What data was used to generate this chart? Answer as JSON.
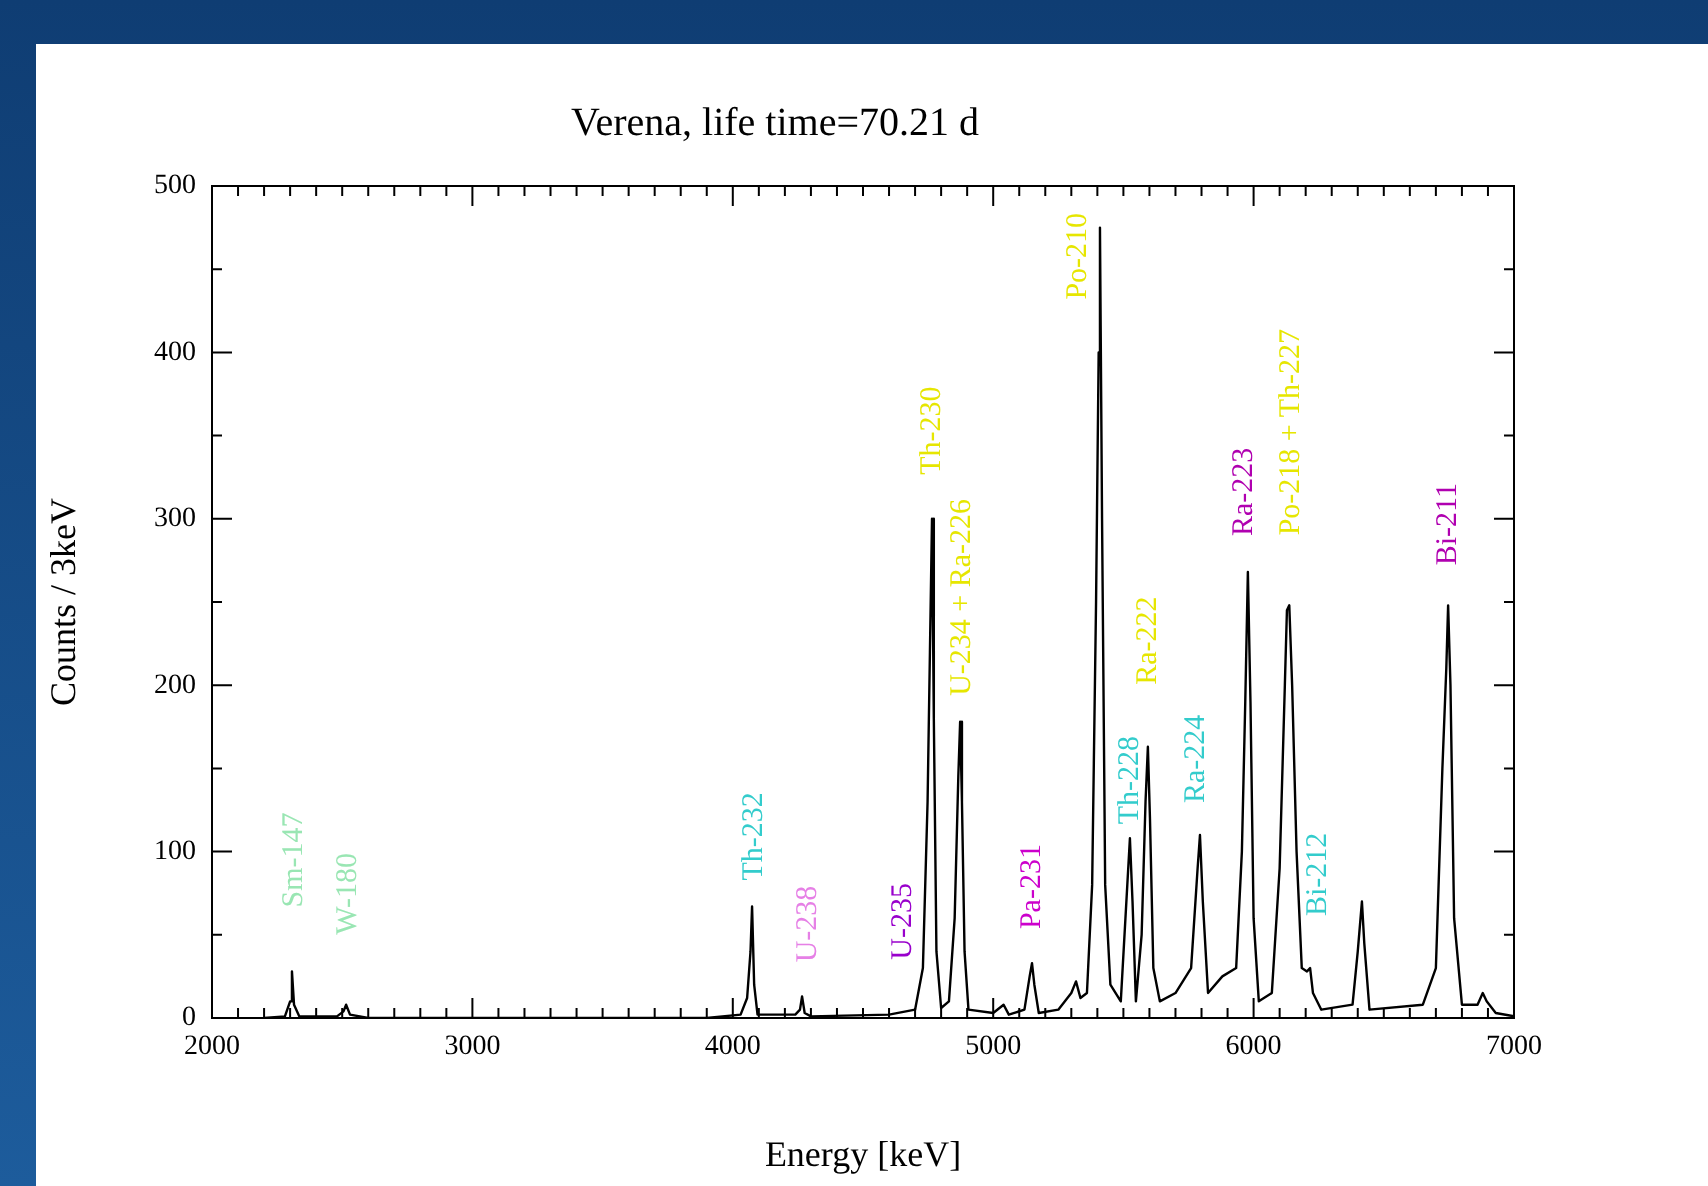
{
  "chart_data": {
    "type": "line",
    "title": "Verena, life time=70.21 d",
    "xlabel": "Energy [keV]",
    "ylabel": "Counts / 3keV",
    "xlim": [
      2000,
      7000
    ],
    "ylim": [
      0,
      500
    ],
    "xticks": [
      2000,
      {
        "value": 2100,
        "label": null
      },
      {
        "value": 2200,
        "label": null
      },
      {
        "value": 2300,
        "label": null
      },
      {
        "value": 2400,
        "label": null
      },
      {
        "value": 2500,
        "label": null
      },
      {
        "value": 2600,
        "label": null
      },
      {
        "value": 2700,
        "label": null
      },
      {
        "value": 2800,
        "label": null
      },
      {
        "value": 2900,
        "label": null
      },
      3000,
      {
        "value": 3100,
        "label": null
      },
      {
        "value": 3200,
        "label": null
      },
      {
        "value": 3300,
        "label": null
      },
      {
        "value": 3400,
        "label": null
      },
      {
        "value": 3500,
        "label": null
      },
      {
        "value": 3600,
        "label": null
      },
      {
        "value": 3700,
        "label": null
      },
      {
        "value": 3800,
        "label": null
      },
      {
        "value": 3900,
        "label": null
      },
      4000,
      {
        "value": 4100,
        "label": null
      },
      {
        "value": 4200,
        "label": null
      },
      {
        "value": 4300,
        "label": null
      },
      {
        "value": 4400,
        "label": null
      },
      {
        "value": 4500,
        "label": null
      },
      {
        "value": 4600,
        "label": null
      },
      {
        "value": 4700,
        "label": null
      },
      {
        "value": 4800,
        "label": null
      },
      {
        "value": 4900,
        "label": null
      },
      5000,
      {
        "value": 5100,
        "label": null
      },
      {
        "value": 5200,
        "label": null
      },
      {
        "value": 5300,
        "label": null
      },
      {
        "value": 5400,
        "label": null
      },
      {
        "value": 5500,
        "label": null
      },
      {
        "value": 5600,
        "label": null
      },
      {
        "value": 5700,
        "label": null
      },
      {
        "value": 5800,
        "label": null
      },
      {
        "value": 5900,
        "label": null
      },
      6000,
      {
        "value": 6100,
        "label": null
      },
      {
        "value": 6200,
        "label": null
      },
      {
        "value": 6300,
        "label": null
      },
      {
        "value": 6400,
        "label": null
      },
      {
        "value": 6500,
        "label": null
      },
      {
        "value": 6600,
        "label": null
      },
      {
        "value": 6700,
        "label": null
      },
      {
        "value": 6800,
        "label": null
      },
      {
        "value": 6900,
        "label": null
      },
      7000
    ],
    "yticks": [
      0,
      {
        "value": 50,
        "label": null
      },
      100,
      {
        "value": 150,
        "label": null
      },
      200,
      {
        "value": 250,
        "label": null
      },
      300,
      {
        "value": 350,
        "label": null
      },
      400,
      {
        "value": 450,
        "label": null
      },
      500
    ],
    "grid": false,
    "legend": false,
    "marker": "none",
    "line_style": "solid",
    "series": [
      {
        "color": "#000000",
        "x": [
          2200,
          2280,
          2300,
          2307,
          2315,
          2335,
          2480,
          2505,
          2515,
          2530,
          2600,
          3900,
          4030,
          4055,
          4068,
          4074,
          4082,
          4095,
          4240,
          4258,
          4266,
          4276,
          4300,
          4600,
          4700,
          4730,
          4748,
          4757,
          4765,
          4772,
          4782,
          4800,
          4830,
          4852,
          4866,
          4873,
          4880,
          4890,
          4905,
          5000,
          5040,
          5060,
          5120,
          5140,
          5149,
          5158,
          5175,
          5250,
          5300,
          5318,
          5335,
          5360,
          5380,
          5395,
          5405,
          5410,
          5418,
          5430,
          5450,
          5490,
          5515,
          5525,
          5535,
          5548,
          5570,
          5585,
          5594,
          5602,
          5615,
          5640,
          5700,
          5760,
          5785,
          5794,
          5805,
          5825,
          5880,
          5933,
          5955,
          5968,
          5978,
          5988,
          6000,
          6020,
          6070,
          6100,
          6120,
          6128,
          6137,
          6148,
          6165,
          6185,
          6205,
          6217,
          6228,
          6260,
          6380,
          6400,
          6416,
          6425,
          6445,
          6650,
          6700,
          6725,
          6740,
          6747,
          6756,
          6770,
          6800,
          6860,
          6880,
          6895,
          6930,
          7000
        ],
        "values": [
          0,
          1,
          10,
          28,
          8,
          1,
          1,
          4,
          8,
          2,
          0,
          0,
          2,
          12,
          40,
          67,
          20,
          2,
          2,
          5,
          13,
          3,
          1,
          2,
          5,
          30,
          130,
          220,
          300,
          180,
          40,
          6,
          10,
          60,
          145,
          178,
          130,
          40,
          5,
          3,
          8,
          2,
          5,
          25,
          33,
          20,
          3,
          5,
          15,
          22,
          12,
          15,
          80,
          250,
          400,
          475,
          300,
          80,
          20,
          10,
          80,
          108,
          70,
          10,
          50,
          130,
          163,
          120,
          30,
          10,
          15,
          30,
          90,
          110,
          70,
          15,
          25,
          30,
          100,
          190,
          268,
          190,
          60,
          10,
          15,
          90,
          200,
          245,
          248,
          200,
          100,
          30,
          28,
          30,
          15,
          5,
          8,
          40,
          70,
          45,
          5,
          8,
          30,
          150,
          210,
          248,
          200,
          60,
          8,
          8,
          15,
          10,
          3,
          1
        ]
      }
    ],
    "annotations": [
      {
        "text": "Sm-147",
        "x": 2307,
        "y": 28
      },
      {
        "text": "W-180",
        "x": 2515,
        "y": 8
      },
      {
        "text": "Th-232",
        "x": 4074,
        "y": 67
      },
      {
        "text": "U-238",
        "x": 4266,
        "y": 13
      },
      {
        "text": "U-235",
        "x": 4700,
        "y": 5
      },
      {
        "text": "Th-230",
        "x": 4765,
        "y": 300
      },
      {
        "text": "U-234 + Ra-226",
        "x": 4873,
        "y": 178
      },
      {
        "text": "Pa-231",
        "x": 5149,
        "y": 33
      },
      {
        "text": "Po-210",
        "x": 5410,
        "y": 475
      },
      {
        "text": "Th-228",
        "x": 5525,
        "y": 108
      },
      {
        "text": "Ra-222",
        "x": 5594,
        "y": 163
      },
      {
        "text": "Ra-224",
        "x": 5794,
        "y": 110
      },
      {
        "text": "Ra-223",
        "x": 5978,
        "y": 268
      },
      {
        "text": "Po-218 + Th-227",
        "x": 6137,
        "y": 248
      },
      {
        "text": "Bi-212",
        "x": 6217,
        "y": 30
      },
      {
        "text": "Bi-211",
        "x": 6747,
        "y": 248
      }
    ]
  }
}
